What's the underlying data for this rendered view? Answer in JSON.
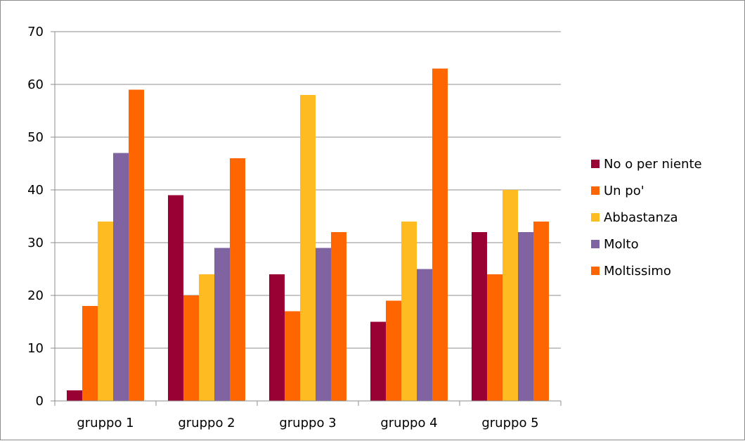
{
  "chart_data": {
    "type": "bar",
    "title": "",
    "xlabel": "",
    "ylabel": "",
    "ylim": [
      0,
      70
    ],
    "yticks": [
      0,
      10,
      20,
      30,
      40,
      50,
      60,
      70
    ],
    "grid": true,
    "legend_position": "right",
    "categories": [
      "gruppo 1",
      "gruppo 2",
      "gruppo 3",
      "gruppo 4",
      "gruppo 5"
    ],
    "series": [
      {
        "name": "No o per niente",
        "color": "#990033",
        "values": [
          2,
          39,
          24,
          15,
          32
        ]
      },
      {
        "name": "Un po'",
        "color": "#FF6600",
        "values": [
          18,
          20,
          17,
          19,
          24
        ]
      },
      {
        "name": "Abbastanza",
        "color": "#FFBB22",
        "values": [
          34,
          24,
          58,
          34,
          40
        ]
      },
      {
        "name": "Molto",
        "color": "#8064A2",
        "values": [
          47,
          29,
          29,
          25,
          32
        ]
      },
      {
        "name": "Moltissimo",
        "color": "#FF6600",
        "values": [
          59,
          46,
          32,
          63,
          34
        ]
      }
    ]
  }
}
